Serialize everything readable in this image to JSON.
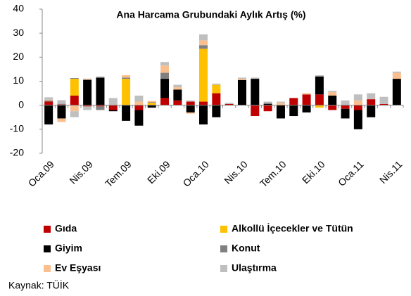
{
  "chart_data": {
    "type": "bar",
    "stacked": true,
    "title": "Ana Harcama Grubundaki Aylık Artış (%)",
    "source": "Kaynak: TÜİK",
    "categories": [
      "Oca.09",
      null,
      null,
      "Nis.09",
      null,
      null,
      "Tem.09",
      null,
      null,
      "Eki.09",
      null,
      null,
      "Oca.10",
      null,
      null,
      "Nis.10",
      null,
      null,
      "Tem.10",
      null,
      null,
      "Eki.10",
      null,
      null,
      "Oca.11",
      null,
      null,
      "Nis.11"
    ],
    "series": [
      {
        "name": "Gıda",
        "color": "#c00000",
        "values": [
          1.5,
          0.3,
          4,
          -0.5,
          -0.5,
          -2,
          0,
          -2,
          0,
          3,
          2,
          1.5,
          1.5,
          5,
          0.5,
          0,
          -4.5,
          -2.5,
          0,
          3,
          4.5,
          4.5,
          -2,
          -1.5,
          -2,
          2.5,
          0.5,
          0
        ]
      },
      {
        "name": "Alkollü İçecekler ve Tütün",
        "color": "#ffc000",
        "values": [
          0,
          0,
          7,
          0,
          0,
          0,
          11,
          0,
          1,
          0,
          0,
          0,
          22,
          3.5,
          0,
          0,
          0,
          0,
          0,
          0,
          0,
          -1,
          0,
          0,
          0,
          0,
          0,
          0
        ]
      },
      {
        "name": "Giyim",
        "color": "#000000",
        "values": [
          -8,
          -5.5,
          0,
          10.5,
          11.5,
          -0.5,
          -6.5,
          -6.5,
          -1,
          8,
          4.5,
          -3,
          -8,
          -5,
          0,
          10.5,
          11,
          0.5,
          -5.5,
          -4.5,
          -3,
          7.5,
          4,
          -4,
          -8,
          -5,
          0,
          11
        ]
      },
      {
        "name": "Konut",
        "color": "#808080",
        "values": [
          0.5,
          0.3,
          0.3,
          0.3,
          -1.5,
          0,
          0.5,
          0,
          0.3,
          2.5,
          0,
          0,
          1.5,
          0,
          0,
          0,
          0,
          0.5,
          0,
          0,
          0,
          0,
          0,
          0,
          0,
          0,
          0,
          0
        ]
      },
      {
        "name": "Ev Eşyası",
        "color": "#fabf8f",
        "values": [
          0.3,
          -1.5,
          -2.5,
          0.3,
          0,
          0,
          1,
          1.5,
          0.5,
          3,
          1,
          -0.5,
          2,
          0,
          0,
          0.5,
          0,
          0,
          1,
          0,
          0.5,
          0,
          1.5,
          0,
          2,
          0,
          0,
          2.5
        ]
      },
      {
        "name": "Ulaştırma",
        "color": "#bfbfbf",
        "values": [
          1,
          1.5,
          -2.5,
          -1.5,
          0.5,
          3,
          0,
          2.5,
          0,
          1.5,
          1,
          0.5,
          2.5,
          0.5,
          0.5,
          0.5,
          0.5,
          0.5,
          0.5,
          0,
          0,
          0.5,
          0.5,
          2,
          2.5,
          2.5,
          3,
          0.5
        ]
      }
    ],
    "ylim": [
      -20,
      40
    ],
    "yticks": [
      -20,
      -10,
      0,
      10,
      20,
      30,
      40
    ],
    "grid": false
  }
}
